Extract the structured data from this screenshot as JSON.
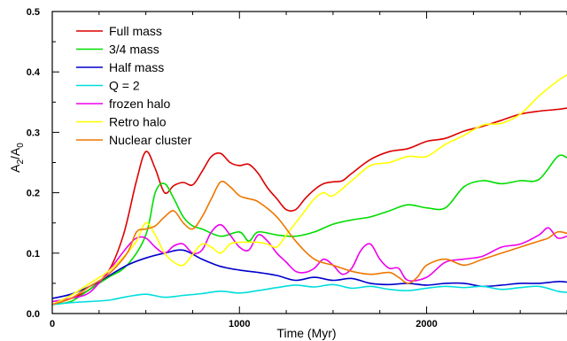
{
  "chart_data": {
    "type": "line",
    "xlabel": "Time (Myr)",
    "ylabel": "A_2/A_0",
    "xlim": [
      0,
      2750
    ],
    "ylim": [
      0,
      0.5
    ],
    "xticks": [
      0,
      1000,
      2000
    ],
    "yticks": [
      0.0,
      0.1,
      0.2,
      0.3,
      0.4,
      0.5
    ],
    "ytick_labels": [
      "0.0",
      "0.1",
      "0.2",
      "0.3",
      "0.4",
      "0.5"
    ],
    "grid": false,
    "legend_position": "top-left",
    "series": [
      {
        "name": "Full mass",
        "color": "#dd0000",
        "x": [
          0,
          100,
          200,
          300,
          380,
          450,
          500,
          550,
          600,
          650,
          700,
          750,
          800,
          850,
          900,
          950,
          1000,
          1050,
          1100,
          1150,
          1200,
          1250,
          1300,
          1350,
          1400,
          1450,
          1500,
          1550,
          1600,
          1700,
          1800,
          1900,
          2000,
          2100,
          2200,
          2300,
          2400,
          2500,
          2600,
          2700,
          2750
        ],
        "y": [
          0.015,
          0.025,
          0.04,
          0.07,
          0.13,
          0.22,
          0.268,
          0.24,
          0.2,
          0.212,
          0.217,
          0.213,
          0.235,
          0.26,
          0.265,
          0.25,
          0.245,
          0.247,
          0.232,
          0.208,
          0.19,
          0.172,
          0.172,
          0.19,
          0.205,
          0.215,
          0.218,
          0.22,
          0.232,
          0.255,
          0.268,
          0.273,
          0.285,
          0.29,
          0.302,
          0.31,
          0.32,
          0.33,
          0.335,
          0.338,
          0.34
        ]
      },
      {
        "name": "3/4 mass",
        "color": "#00dd00",
        "x": [
          0,
          100,
          200,
          300,
          400,
          500,
          550,
          600,
          650,
          700,
          750,
          800,
          900,
          1000,
          1050,
          1100,
          1200,
          1300,
          1400,
          1500,
          1600,
          1700,
          1800,
          1900,
          2000,
          2100,
          2200,
          2300,
          2400,
          2500,
          2600,
          2700,
          2750
        ],
        "y": [
          0.015,
          0.02,
          0.04,
          0.06,
          0.08,
          0.13,
          0.2,
          0.215,
          0.19,
          0.16,
          0.145,
          0.14,
          0.128,
          0.135,
          0.12,
          0.135,
          0.13,
          0.128,
          0.135,
          0.148,
          0.155,
          0.16,
          0.17,
          0.18,
          0.175,
          0.175,
          0.21,
          0.22,
          0.215,
          0.22,
          0.222,
          0.26,
          0.258
        ]
      },
      {
        "name": "Half mass",
        "color": "#0000cc",
        "x": [
          0,
          100,
          200,
          300,
          400,
          500,
          600,
          700,
          800,
          900,
          1000,
          1100,
          1200,
          1300,
          1400,
          1500,
          1600,
          1700,
          1800,
          1900,
          2000,
          2100,
          2200,
          2300,
          2400,
          2500,
          2600,
          2700,
          2750
        ],
        "y": [
          0.025,
          0.032,
          0.045,
          0.062,
          0.08,
          0.092,
          0.1,
          0.105,
          0.09,
          0.078,
          0.072,
          0.068,
          0.063,
          0.055,
          0.06,
          0.055,
          0.058,
          0.05,
          0.048,
          0.05,
          0.047,
          0.05,
          0.05,
          0.045,
          0.047,
          0.05,
          0.05,
          0.053,
          0.052
        ]
      },
      {
        "name": "Q = 2",
        "color": "#00dddd",
        "x": [
          0,
          100,
          200,
          300,
          400,
          500,
          600,
          700,
          800,
          900,
          1000,
          1100,
          1200,
          1300,
          1400,
          1500,
          1600,
          1700,
          1800,
          1900,
          2000,
          2100,
          2200,
          2300,
          2400,
          2500,
          2600,
          2700,
          2750
        ],
        "y": [
          0.015,
          0.018,
          0.02,
          0.022,
          0.028,
          0.032,
          0.027,
          0.03,
          0.033,
          0.037,
          0.034,
          0.038,
          0.043,
          0.047,
          0.044,
          0.048,
          0.042,
          0.045,
          0.04,
          0.038,
          0.042,
          0.045,
          0.043,
          0.045,
          0.04,
          0.043,
          0.045,
          0.037,
          0.035
        ]
      },
      {
        "name": "frozen halo",
        "color": "#ee00ee",
        "x": [
          0,
          100,
          200,
          300,
          400,
          450,
          500,
          550,
          600,
          650,
          700,
          750,
          800,
          850,
          900,
          950,
          1000,
          1050,
          1100,
          1150,
          1200,
          1250,
          1300,
          1350,
          1400,
          1450,
          1500,
          1550,
          1600,
          1650,
          1700,
          1750,
          1800,
          1850,
          1900,
          2000,
          2100,
          2200,
          2300,
          2400,
          2500,
          2600,
          2650,
          2700,
          2750
        ],
        "y": [
          0.02,
          0.025,
          0.035,
          0.07,
          0.11,
          0.125,
          0.125,
          0.11,
          0.1,
          0.112,
          0.115,
          0.1,
          0.105,
          0.135,
          0.147,
          0.13,
          0.11,
          0.105,
          0.13,
          0.12,
          0.1,
          0.085,
          0.07,
          0.068,
          0.075,
          0.09,
          0.08,
          0.065,
          0.075,
          0.105,
          0.115,
          0.09,
          0.075,
          0.075,
          0.055,
          0.06,
          0.085,
          0.09,
          0.095,
          0.11,
          0.115,
          0.13,
          0.142,
          0.125,
          0.128
        ]
      },
      {
        "name": "Retro halo",
        "color": "#ffff00",
        "x": [
          0,
          100,
          200,
          300,
          400,
          450,
          500,
          550,
          600,
          650,
          700,
          750,
          800,
          850,
          900,
          950,
          1000,
          1050,
          1100,
          1150,
          1200,
          1250,
          1300,
          1350,
          1400,
          1450,
          1500,
          1600,
          1700,
          1800,
          1900,
          2000,
          2100,
          2200,
          2300,
          2400,
          2500,
          2600,
          2700,
          2750
        ],
        "y": [
          0.015,
          0.03,
          0.05,
          0.07,
          0.1,
          0.12,
          0.15,
          0.13,
          0.1,
          0.085,
          0.08,
          0.098,
          0.115,
          0.11,
          0.1,
          0.115,
          0.118,
          0.118,
          0.118,
          0.115,
          0.11,
          0.13,
          0.15,
          0.17,
          0.19,
          0.2,
          0.195,
          0.22,
          0.245,
          0.25,
          0.26,
          0.26,
          0.28,
          0.295,
          0.312,
          0.315,
          0.33,
          0.36,
          0.385,
          0.395
        ]
      },
      {
        "name": "Nuclear cluster",
        "color": "#ee7700",
        "x": [
          0,
          100,
          200,
          300,
          400,
          450,
          500,
          550,
          600,
          650,
          700,
          750,
          800,
          850,
          900,
          950,
          1000,
          1050,
          1100,
          1200,
          1300,
          1400,
          1500,
          1600,
          1700,
          1800,
          1850,
          1900,
          1950,
          2000,
          2100,
          2200,
          2300,
          2400,
          2500,
          2600,
          2650,
          2700,
          2750
        ],
        "y": [
          0.015,
          0.025,
          0.045,
          0.065,
          0.1,
          0.135,
          0.14,
          0.145,
          0.16,
          0.17,
          0.15,
          0.14,
          0.16,
          0.19,
          0.218,
          0.21,
          0.195,
          0.19,
          0.185,
          0.16,
          0.12,
          0.09,
          0.08,
          0.07,
          0.065,
          0.068,
          0.06,
          0.05,
          0.06,
          0.08,
          0.09,
          0.08,
          0.09,
          0.1,
          0.11,
          0.12,
          0.125,
          0.135,
          0.133
        ]
      }
    ]
  }
}
